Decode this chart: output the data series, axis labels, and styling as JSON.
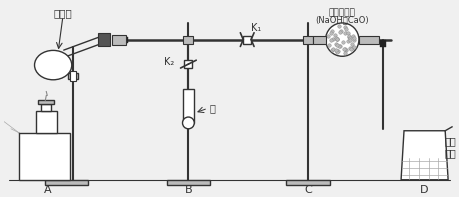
{
  "bg_color": "#f0f0f0",
  "line_color": "#333333",
  "label_A": "A",
  "label_B": "B",
  "label_C": "C",
  "label_D": "D",
  "label_pellet": "膨松剂",
  "label_alkali": "足量碱石灰",
  "label_alkali2": "(NaOH和CaO)",
  "label_water": "水",
  "label_acid": "酚酞\n溶液",
  "label_K1": "K₁",
  "label_K2": "K₂",
  "figsize": [
    4.6,
    1.97
  ],
  "dpi": 100
}
